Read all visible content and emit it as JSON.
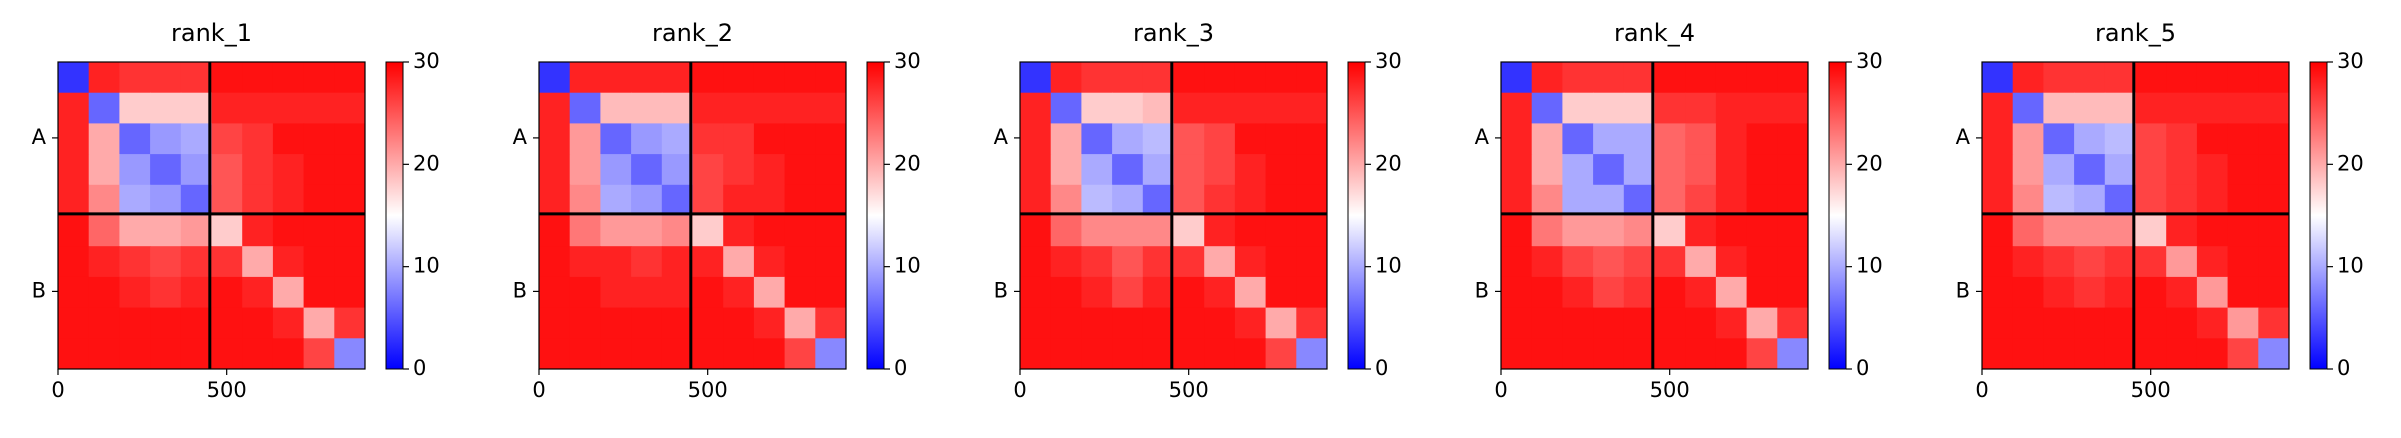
{
  "chart_data": [
    {
      "type": "heatmap",
      "title": "rank_1",
      "colormap": "bwr",
      "xlim": [
        0,
        910
      ],
      "ylim": [
        910,
        0
      ],
      "xticks": [
        0,
        500
      ],
      "yticks": [
        {
          "value": 225,
          "label": "A"
        },
        {
          "value": 680,
          "label": "B"
        }
      ],
      "chain_breaks": [
        450
      ],
      "clim": [
        0,
        30
      ],
      "cticks": [
        0,
        10,
        20,
        30
      ],
      "values": [
        [
          3,
          28,
          27,
          27,
          27,
          29,
          29,
          29,
          29,
          29
        ],
        [
          28,
          6,
          18,
          18,
          18,
          28,
          28,
          28,
          28,
          28
        ],
        [
          28,
          20,
          6,
          9,
          10,
          26,
          27,
          29,
          29,
          29
        ],
        [
          28,
          20,
          9,
          6,
          9,
          25,
          27,
          28,
          29,
          29
        ],
        [
          28,
          22,
          10,
          9,
          6,
          25,
          27,
          28,
          29,
          29
        ],
        [
          29,
          24,
          20,
          20,
          21,
          18,
          28,
          29,
          29,
          29
        ],
        [
          29,
          28,
          27,
          26,
          27,
          27,
          20,
          28,
          29,
          29
        ],
        [
          29,
          29,
          28,
          27,
          28,
          29,
          28,
          20,
          29,
          29
        ],
        [
          29,
          29,
          29,
          29,
          29,
          29,
          29,
          28,
          20,
          27
        ],
        [
          29,
          29,
          29,
          29,
          29,
          29,
          29,
          29,
          26,
          8
        ]
      ]
    },
    {
      "type": "heatmap",
      "title": "rank_2",
      "colormap": "bwr",
      "xlim": [
        0,
        910
      ],
      "ylim": [
        910,
        0
      ],
      "xticks": [
        0,
        500
      ],
      "yticks": [
        {
          "value": 225,
          "label": "A"
        },
        {
          "value": 680,
          "label": "B"
        }
      ],
      "chain_breaks": [
        450
      ],
      "clim": [
        0,
        30
      ],
      "cticks": [
        0,
        10,
        20,
        30
      ],
      "values": [
        [
          3,
          28,
          28,
          28,
          28,
          29,
          29,
          29,
          29,
          29
        ],
        [
          28,
          6,
          19,
          19,
          19,
          28,
          28,
          28,
          28,
          28
        ],
        [
          28,
          21,
          6,
          9,
          10,
          27,
          27,
          29,
          29,
          29
        ],
        [
          28,
          21,
          9,
          6,
          9,
          26,
          27,
          28,
          29,
          29
        ],
        [
          28,
          22,
          10,
          9,
          6,
          26,
          28,
          28,
          29,
          29
        ],
        [
          29,
          23,
          21,
          21,
          22,
          18,
          28,
          29,
          29,
          29
        ],
        [
          29,
          28,
          28,
          27,
          28,
          28,
          20,
          28,
          29,
          29
        ],
        [
          29,
          29,
          28,
          28,
          28,
          29,
          28,
          20,
          29,
          29
        ],
        [
          29,
          29,
          29,
          29,
          29,
          29,
          29,
          28,
          20,
          27
        ],
        [
          29,
          29,
          29,
          29,
          29,
          29,
          29,
          29,
          26,
          8
        ]
      ]
    },
    {
      "type": "heatmap",
      "title": "rank_3",
      "colormap": "bwr",
      "xlim": [
        0,
        910
      ],
      "ylim": [
        910,
        0
      ],
      "xticks": [
        0,
        500
      ],
      "yticks": [
        {
          "value": 225,
          "label": "A"
        },
        {
          "value": 680,
          "label": "B"
        }
      ],
      "chain_breaks": [
        450
      ],
      "clim": [
        0,
        30
      ],
      "cticks": [
        0,
        10,
        20,
        30
      ],
      "values": [
        [
          3,
          28,
          27,
          27,
          27,
          29,
          29,
          29,
          29,
          29
        ],
        [
          28,
          6,
          18,
          18,
          19,
          28,
          28,
          28,
          28,
          28
        ],
        [
          28,
          20,
          6,
          10,
          11,
          25,
          26,
          29,
          29,
          29
        ],
        [
          28,
          20,
          10,
          6,
          10,
          25,
          26,
          28,
          29,
          29
        ],
        [
          28,
          22,
          11,
          10,
          6,
          25,
          27,
          28,
          29,
          29
        ],
        [
          29,
          24,
          22,
          22,
          22,
          18,
          28,
          29,
          29,
          29
        ],
        [
          29,
          28,
          27,
          25,
          27,
          27,
          20,
          28,
          29,
          29
        ],
        [
          29,
          29,
          28,
          26,
          28,
          29,
          28,
          20,
          29,
          29
        ],
        [
          29,
          29,
          29,
          29,
          29,
          29,
          29,
          28,
          20,
          27
        ],
        [
          29,
          29,
          29,
          29,
          29,
          29,
          29,
          29,
          26,
          8
        ]
      ]
    },
    {
      "type": "heatmap",
      "title": "rank_4",
      "colormap": "bwr",
      "xlim": [
        0,
        910
      ],
      "ylim": [
        910,
        0
      ],
      "xticks": [
        0,
        500
      ],
      "yticks": [
        {
          "value": 225,
          "label": "A"
        },
        {
          "value": 680,
          "label": "B"
        }
      ],
      "chain_breaks": [
        450
      ],
      "clim": [
        0,
        30
      ],
      "cticks": [
        0,
        10,
        20,
        30
      ],
      "values": [
        [
          3,
          28,
          27,
          27,
          27,
          29,
          29,
          29,
          29,
          29
        ],
        [
          28,
          6,
          18,
          18,
          18,
          27,
          27,
          28,
          28,
          28
        ],
        [
          28,
          20,
          6,
          10,
          10,
          24,
          25,
          28,
          29,
          29
        ],
        [
          28,
          20,
          10,
          6,
          10,
          24,
          25,
          28,
          29,
          29
        ],
        [
          28,
          22,
          10,
          10,
          6,
          24,
          26,
          28,
          29,
          29
        ],
        [
          29,
          23,
          21,
          21,
          22,
          18,
          28,
          29,
          29,
          29
        ],
        [
          29,
          28,
          26,
          25,
          26,
          27,
          20,
          28,
          29,
          29
        ],
        [
          29,
          29,
          28,
          26,
          27,
          29,
          28,
          20,
          29,
          29
        ],
        [
          29,
          29,
          29,
          29,
          29,
          29,
          29,
          28,
          20,
          27
        ],
        [
          29,
          29,
          29,
          29,
          29,
          29,
          29,
          29,
          26,
          8
        ]
      ]
    },
    {
      "type": "heatmap",
      "title": "rank_5",
      "colormap": "bwr",
      "xlim": [
        0,
        910
      ],
      "ylim": [
        910,
        0
      ],
      "xticks": [
        0,
        500
      ],
      "yticks": [
        {
          "value": 225,
          "label": "A"
        },
        {
          "value": 680,
          "label": "B"
        }
      ],
      "chain_breaks": [
        450
      ],
      "clim": [
        0,
        30
      ],
      "cticks": [
        0,
        10,
        20,
        30
      ],
      "values": [
        [
          3,
          28,
          27,
          27,
          27,
          29,
          29,
          29,
          29,
          29
        ],
        [
          28,
          6,
          19,
          19,
          19,
          28,
          28,
          28,
          28,
          28
        ],
        [
          28,
          21,
          6,
          10,
          11,
          26,
          27,
          29,
          29,
          29
        ],
        [
          28,
          21,
          10,
          6,
          10,
          26,
          27,
          28,
          29,
          29
        ],
        [
          28,
          22,
          11,
          10,
          6,
          26,
          27,
          28,
          29,
          29
        ],
        [
          29,
          24,
          22,
          22,
          22,
          18,
          28,
          29,
          29,
          29
        ],
        [
          29,
          28,
          27,
          26,
          27,
          27,
          21,
          28,
          29,
          29
        ],
        [
          29,
          29,
          28,
          27,
          28,
          29,
          28,
          21,
          29,
          29
        ],
        [
          29,
          29,
          29,
          29,
          29,
          29,
          29,
          28,
          21,
          27
        ],
        [
          29,
          29,
          29,
          29,
          29,
          29,
          29,
          29,
          26,
          8
        ]
      ]
    }
  ]
}
